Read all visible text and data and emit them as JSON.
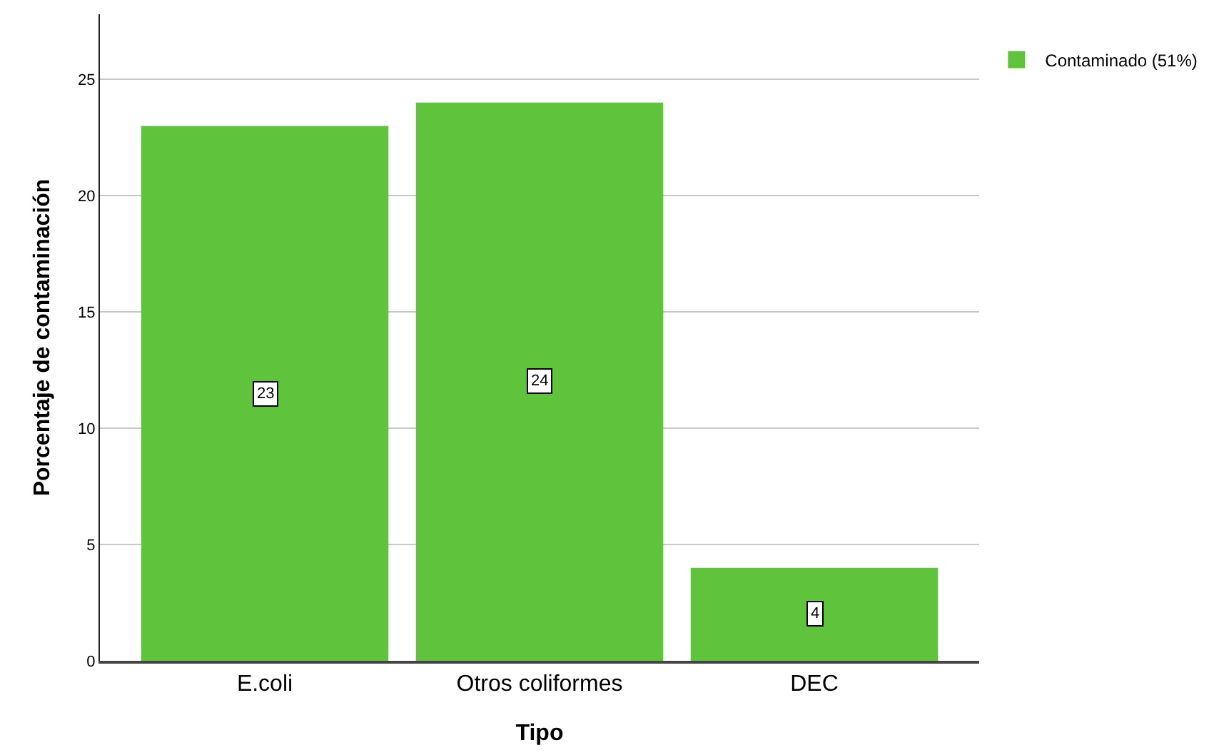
{
  "chart_data": {
    "type": "bar",
    "xlabel": "Tipo",
    "ylabel": "Porcentaje de contaminación",
    "categories": [
      "E.coli",
      "Otros coliformes",
      "DEC"
    ],
    "series": [
      {
        "name": "Contaminado (51%)",
        "color": "#5fc33b",
        "values": [
          23,
          24,
          4
        ]
      }
    ],
    "ylim": [
      0,
      27.8
    ],
    "yticks": [
      0,
      5,
      10,
      15,
      20,
      25
    ],
    "grid": "y",
    "legend": "top right",
    "data_labels": true
  }
}
